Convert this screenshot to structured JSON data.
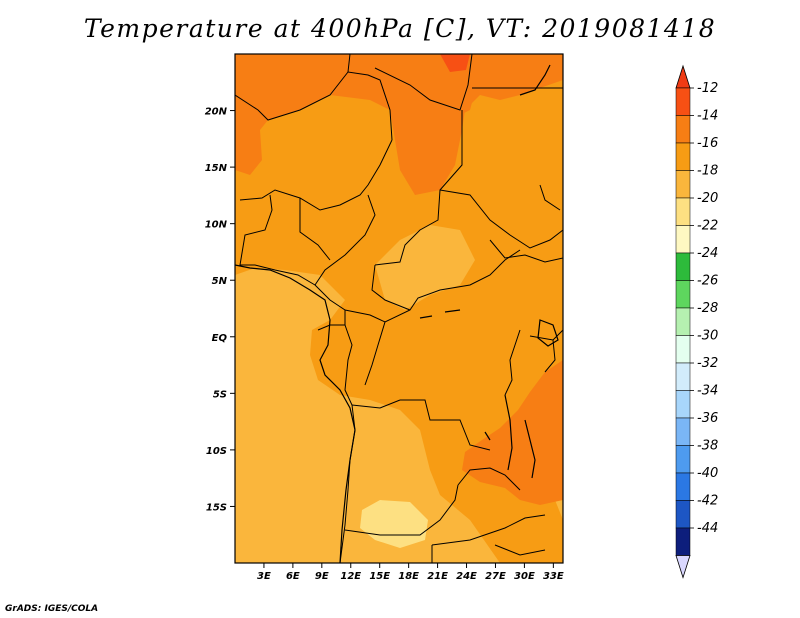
{
  "title": "Temperature at 400hPa [C], VT: 2019081418",
  "credit": "GrADS: IGES/COLA",
  "map": {
    "lon_range": [
      0,
      34
    ],
    "lat_range": [
      -20,
      25
    ],
    "lon_ticks": [
      {
        "value": 3,
        "label": "3E"
      },
      {
        "value": 6,
        "label": "6E"
      },
      {
        "value": 9,
        "label": "9E"
      },
      {
        "value": 12,
        "label": "12E"
      },
      {
        "value": 15,
        "label": "15E"
      },
      {
        "value": 18,
        "label": "18E"
      },
      {
        "value": 21,
        "label": "21E"
      },
      {
        "value": 24,
        "label": "24E"
      },
      {
        "value": 27,
        "label": "27E"
      },
      {
        "value": 30,
        "label": "30E"
      },
      {
        "value": 33,
        "label": "33E"
      }
    ],
    "lat_ticks": [
      {
        "value": 20,
        "label": "20N"
      },
      {
        "value": 15,
        "label": "15N"
      },
      {
        "value": 10,
        "label": "10N"
      },
      {
        "value": 5,
        "label": "5N"
      },
      {
        "value": 0,
        "label": "EQ"
      },
      {
        "value": -5,
        "label": "5S"
      },
      {
        "value": -10,
        "label": "10S"
      },
      {
        "value": -15,
        "label": "15S"
      }
    ]
  },
  "colorbar": {
    "levels": [
      {
        "label": "-12",
        "color": "#f75014"
      },
      {
        "label": "-14",
        "color": "#f77e14"
      },
      {
        "label": "-16",
        "color": "#f79c14"
      },
      {
        "label": "-18",
        "color": "#fab63c"
      },
      {
        "label": "-20",
        "color": "#fde082"
      },
      {
        "label": "-22",
        "color": "#fef8c2"
      },
      {
        "label": "-24",
        "color": "#2dbb3b"
      },
      {
        "label": "-26",
        "color": "#5ed65e"
      },
      {
        "label": "-28",
        "color": "#b5f0b0"
      },
      {
        "label": "-30",
        "color": "#e4ffef"
      },
      {
        "label": "-32",
        "color": "#d2ecfb"
      },
      {
        "label": "-34",
        "color": "#a8d6fb"
      },
      {
        "label": "-36",
        "color": "#7ab6f6"
      },
      {
        "label": "-38",
        "color": "#4e9bef"
      },
      {
        "label": "-40",
        "color": "#2b78e4"
      },
      {
        "label": "-42",
        "color": "#1d56c4"
      },
      {
        "label": "-44",
        "color": "#0d1e7c"
      }
    ],
    "top_color": "#f03b14",
    "bottom_color": "#dad8ff"
  }
}
